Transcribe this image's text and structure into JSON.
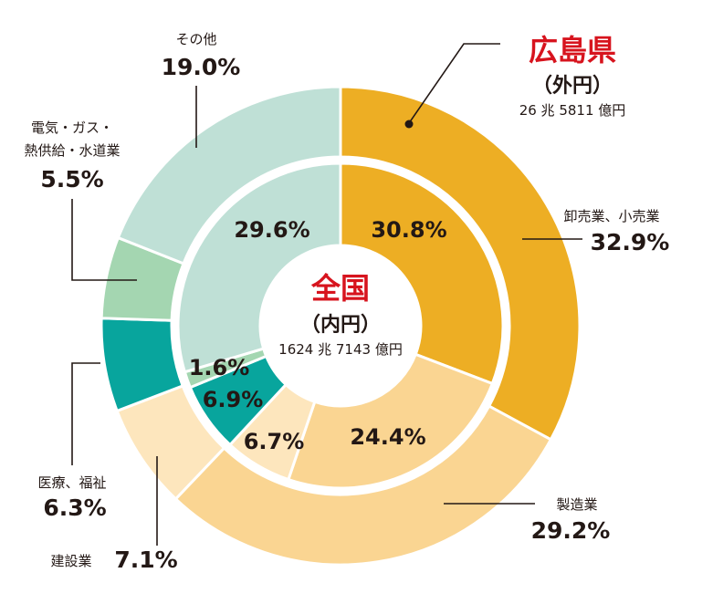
{
  "colors": {
    "title_red": "#d7141e",
    "text": "#231815",
    "wholesale": "#edae24",
    "manufacturing": "#fad592",
    "construction": "#fde6bd",
    "medical": "#08a59d",
    "utilities": "#a4d6b1",
    "other": "#bfe0d6"
  },
  "chart_data": {
    "type": "pie",
    "variant": "double-donut",
    "start_angle_deg": 0,
    "direction": "clockwise",
    "categories": [
      "卸売業、小売業",
      "製造業",
      "建設業",
      "医療、福祉",
      "電気・ガス・熱供給・水道業",
      "その他"
    ],
    "series": [
      {
        "name": "広島県",
        "ring": "outer",
        "title": "広島県",
        "subtitle": "（外円）",
        "total": "26 兆 5811 億円",
        "values": [
          32.9,
          29.2,
          7.1,
          6.3,
          5.5,
          19.0
        ],
        "value_labels": [
          "32.9%",
          "29.2%",
          "7.1%",
          "6.3%",
          "5.5%",
          "19.0%"
        ]
      },
      {
        "name": "全国",
        "ring": "inner",
        "title": "全国",
        "subtitle": "（内円）",
        "total": "1624 兆 7143 億円",
        "values": [
          30.8,
          24.4,
          6.7,
          6.9,
          1.6,
          29.6
        ],
        "value_labels": [
          "30.8%",
          "24.4%",
          "6.7%",
          "6.9%",
          "1.6%",
          "29.6%"
        ]
      }
    ],
    "outer_category_labels": {
      "wholesale": "卸売業、小売業",
      "manufacturing": "製造業",
      "construction": "建設業",
      "medical": "医療、福祉",
      "utilities_line1": "電気・ガス・",
      "utilities_line2": "熱供給・水道業",
      "other": "その他"
    },
    "slice_colors": [
      "#edae24",
      "#fad592",
      "#fde6bd",
      "#08a59d",
      "#a4d6b1",
      "#bfe0d6"
    ]
  }
}
